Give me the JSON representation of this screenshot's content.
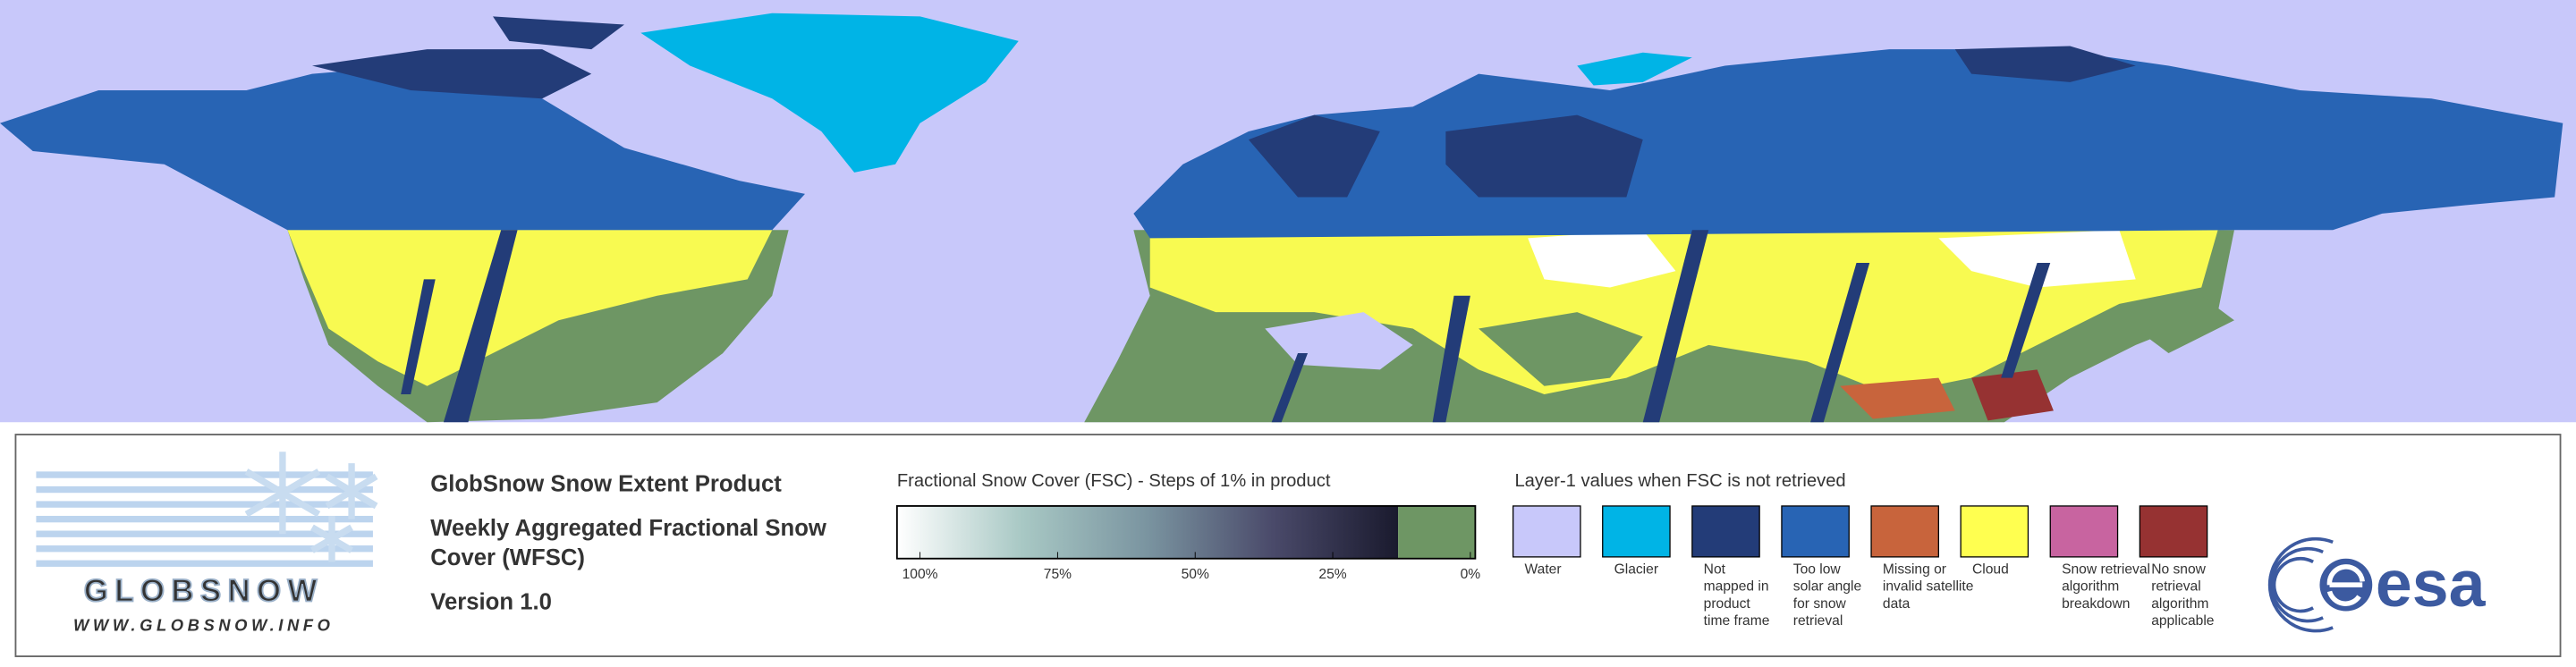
{
  "map": {
    "background": "#c8c8fa"
  },
  "logo": {
    "name": "GLOBSNOW",
    "url": "WWW.GLOBSNOW.INFO"
  },
  "product": {
    "title": "GlobSnow Snow Extent Product",
    "subtitle_lines": [
      "Weekly Aggregated Fractional Snow",
      "Cover (WFSC)"
    ],
    "version": "Version 1.0"
  },
  "fsc_legend": {
    "title": "Fractional Snow Cover (FSC) - Steps of 1% in product",
    "lim": [
      100,
      0
    ],
    "ticks": [
      {
        "value": 100,
        "label": "100%"
      },
      {
        "value": 75,
        "label": "75%"
      },
      {
        "value": 50,
        "label": "50%"
      },
      {
        "value": 25,
        "label": "25%"
      },
      {
        "value": 0,
        "label": "0%"
      }
    ],
    "gradient_colors": [
      "#ffffff",
      "#a8c8c4",
      "#7a94a0",
      "#4a4a6a",
      "#1a1a2e"
    ],
    "no_snow_color": "#6e9664"
  },
  "layer1_legend": {
    "title": "Layer-1 values when FSC is not retrieved",
    "items": [
      {
        "label_lines": [
          "Water"
        ],
        "color": "#c8c8fa"
      },
      {
        "label_lines": [
          "Glacier"
        ],
        "color": "#00b4e6"
      },
      {
        "label_lines": [
          "Not",
          "mapped in",
          "product",
          "time frame"
        ],
        "color": "#233c78"
      },
      {
        "label_lines": [
          "Too low",
          "solar angle",
          "for snow",
          "retrieval"
        ],
        "color": "#2864b4"
      },
      {
        "label_lines": [
          "Missing or",
          "invalid satellite",
          "data"
        ],
        "color": "#c8643c"
      },
      {
        "label_lines": [
          "Cloud"
        ],
        "color": "#ffff50"
      },
      {
        "label_lines": [
          "Snow retrieval",
          "algorithm",
          "breakdown"
        ],
        "color": "#c864a0"
      },
      {
        "label_lines": [
          "No snow",
          "retrieval",
          "algorithm",
          "applicable"
        ],
        "color": "#963232"
      }
    ]
  },
  "agency": {
    "name": "esa"
  }
}
